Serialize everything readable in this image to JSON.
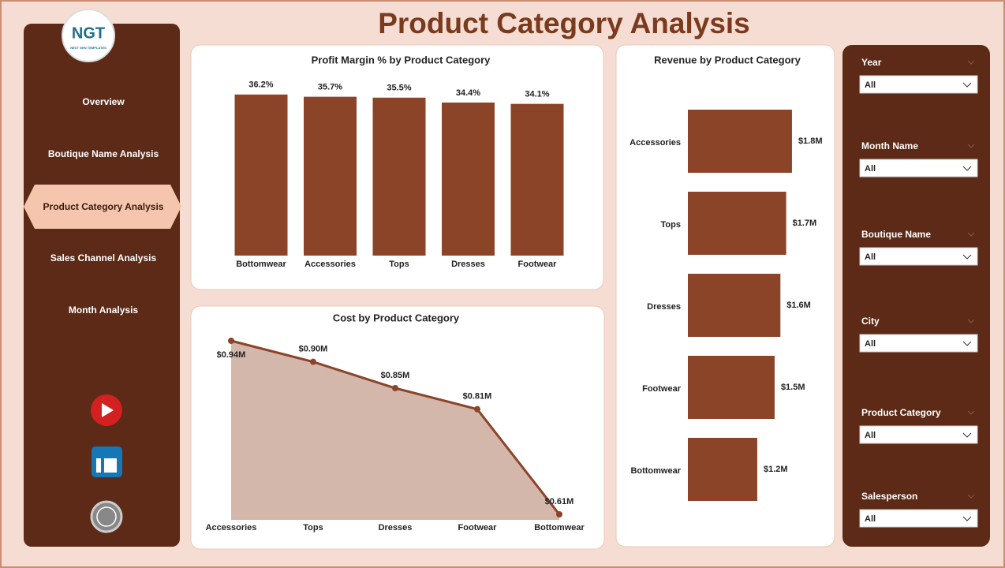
{
  "title": "Product Category Analysis",
  "logo": {
    "text": "NGT",
    "subtext": "NEXT GEN TEMPLATES"
  },
  "nav": [
    "Overview",
    "Boutique Name Analysis",
    "Product Category Analysis",
    "Sales Channel Analysis",
    "Month Analysis"
  ],
  "filters": [
    {
      "label": "Year",
      "value": "All"
    },
    {
      "label": "Month Name",
      "value": "All"
    },
    {
      "label": "Boutique Name",
      "value": "All"
    },
    {
      "label": "City",
      "value": "All"
    },
    {
      "label": "Product Category",
      "value": "All"
    },
    {
      "label": "Salesperson",
      "value": "All"
    }
  ],
  "chart_data": [
    {
      "type": "bar",
      "title": "Profit Margin % by Product Category",
      "categories": [
        "Bottomwear",
        "Accessories",
        "Tops",
        "Dresses",
        "Footwear"
      ],
      "values": [
        36.2,
        35.7,
        35.5,
        34.4,
        34.1
      ],
      "value_labels": [
        "36.2%",
        "35.7%",
        "35.5%",
        "34.4%",
        "34.1%"
      ],
      "color": "#8b4428"
    },
    {
      "type": "hbar",
      "title": "Revenue by Product Category",
      "categories": [
        "Accessories",
        "Tops",
        "Dresses",
        "Footwear",
        "Bottomwear"
      ],
      "values": [
        1.8,
        1.7,
        1.6,
        1.5,
        1.2
      ],
      "value_labels": [
        "$1.8M",
        "$1.7M",
        "$1.6M",
        "$1.5M",
        "$1.2M"
      ],
      "color": "#8b4428"
    },
    {
      "type": "area",
      "title": "Cost by Product Category",
      "categories": [
        "Accessories",
        "Tops",
        "Dresses",
        "Footwear",
        "Bottomwear"
      ],
      "values": [
        0.94,
        0.9,
        0.85,
        0.81,
        0.61
      ],
      "value_labels": [
        "$0.94M",
        "$0.90M",
        "$0.85M",
        "$0.81M",
        "$0.61M"
      ],
      "color": "#8b4428"
    }
  ]
}
